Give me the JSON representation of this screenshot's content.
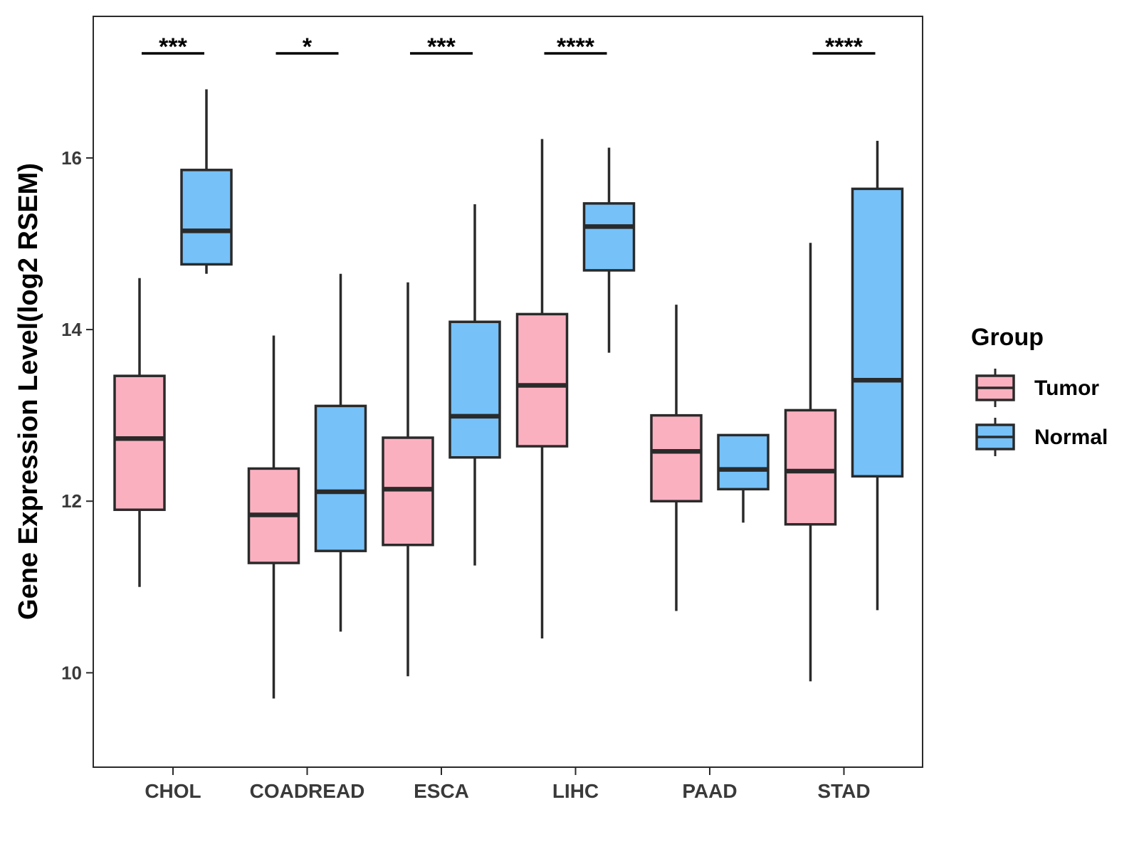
{
  "chart_data": {
    "type": "boxplot",
    "categories": [
      "CHOL",
      "COADREAD",
      "ESCA",
      "LIHC",
      "PAAD",
      "STAD"
    ],
    "ylabel": "Gene Expression Level(log2 RSEM)",
    "xlabel": "",
    "ylim": [
      8.9,
      17.65
    ],
    "yticks": [
      10,
      12,
      14,
      16
    ],
    "grid": false,
    "legend": {
      "title": "Group",
      "position": "right",
      "entries": [
        "Tumor",
        "Normal"
      ]
    },
    "series": [
      {
        "name": "Tumor",
        "color": "#fbb0c0",
        "boxes": [
          {
            "min": 11.0,
            "q1": 11.9,
            "median": 12.73,
            "q3": 13.46,
            "max": 14.6
          },
          {
            "min": 9.7,
            "q1": 11.28,
            "median": 11.84,
            "q3": 12.38,
            "max": 13.93
          },
          {
            "min": 9.96,
            "q1": 11.49,
            "median": 12.14,
            "q3": 12.74,
            "max": 14.55
          },
          {
            "min": 10.4,
            "q1": 12.64,
            "median": 13.35,
            "q3": 14.18,
            "max": 16.22
          },
          {
            "min": 10.72,
            "q1": 12.0,
            "median": 12.58,
            "q3": 13.0,
            "max": 14.29
          },
          {
            "min": 9.9,
            "q1": 11.73,
            "median": 12.35,
            "q3": 13.06,
            "max": 15.01
          }
        ]
      },
      {
        "name": "Normal",
        "color": "#76c1f8",
        "boxes": [
          {
            "min": 14.65,
            "q1": 14.76,
            "median": 15.15,
            "q3": 15.86,
            "max": 16.8
          },
          {
            "min": 10.48,
            "q1": 11.42,
            "median": 12.11,
            "q3": 13.11,
            "max": 14.65
          },
          {
            "min": 11.25,
            "q1": 12.51,
            "median": 12.99,
            "q3": 14.09,
            "max": 15.46
          },
          {
            "min": 13.73,
            "q1": 14.69,
            "median": 15.2,
            "q3": 15.47,
            "max": 16.12
          },
          {
            "min": 11.75,
            "q1": 12.14,
            "median": 12.37,
            "q3": 12.77,
            "max": 12.77
          },
          {
            "min": 10.73,
            "q1": 12.29,
            "median": 13.41,
            "q3": 15.64,
            "max": 16.2
          }
        ]
      }
    ],
    "significance": [
      {
        "category": "CHOL",
        "label": "***"
      },
      {
        "category": "COADREAD",
        "label": "*"
      },
      {
        "category": "ESCA",
        "label": "***"
      },
      {
        "category": "LIHC",
        "label": "****"
      },
      {
        "category": "PAAD",
        "label": ""
      },
      {
        "category": "STAD",
        "label": "****"
      }
    ]
  },
  "colors": {
    "outline": "#2a2a2a",
    "axis_text": "#3a3a3a"
  }
}
